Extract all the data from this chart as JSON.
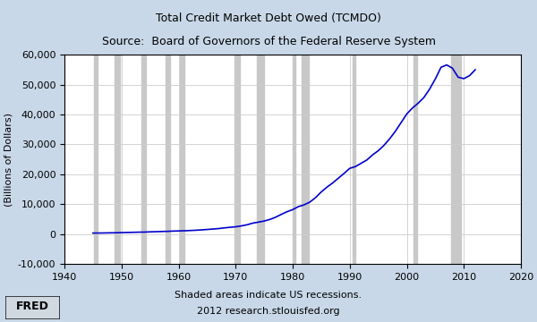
{
  "title_line1": "Total Credit Market Debt Owed (TCMDO)",
  "title_line2": "Source:  Board of Governors of the Federal Reserve System",
  "ylabel": "(Billions of Dollars)",
  "footer_line1": "Shaded areas indicate US recessions.",
  "footer_line2": "2012 research.stlouisfed.org",
  "xlim": [
    1940,
    2020
  ],
  "ylim": [
    -10000,
    60000
  ],
  "xticks": [
    1940,
    1950,
    1960,
    1970,
    1980,
    1990,
    2000,
    2010,
    2020
  ],
  "yticks": [
    -10000,
    0,
    10000,
    20000,
    30000,
    40000,
    50000,
    60000
  ],
  "background_color": "#c8d8e8",
  "plot_bg_color": "#ffffff",
  "line_color": "#0000cc",
  "recession_color": "#c8c8c8",
  "recessions": [
    [
      1945.25,
      1945.75
    ],
    [
      1948.75,
      1949.75
    ],
    [
      1953.5,
      1954.25
    ],
    [
      1957.75,
      1958.5
    ],
    [
      1960.25,
      1961.0
    ],
    [
      1969.75,
      1970.75
    ],
    [
      1973.75,
      1975.0
    ],
    [
      1980.0,
      1980.5
    ],
    [
      1981.5,
      1982.75
    ],
    [
      1990.5,
      1991.0
    ],
    [
      2001.25,
      2001.75
    ],
    [
      2007.75,
      2009.5
    ]
  ],
  "data_years": [
    1945,
    1946,
    1947,
    1948,
    1949,
    1950,
    1951,
    1952,
    1953,
    1954,
    1955,
    1956,
    1957,
    1958,
    1959,
    1960,
    1961,
    1962,
    1963,
    1964,
    1965,
    1966,
    1967,
    1968,
    1969,
    1970,
    1971,
    1972,
    1973,
    1974,
    1975,
    1976,
    1977,
    1978,
    1979,
    1980,
    1981,
    1982,
    1983,
    1984,
    1985,
    1986,
    1987,
    1988,
    1989,
    1990,
    1991,
    1992,
    1993,
    1994,
    1995,
    1996,
    1997,
    1998,
    1999,
    2000,
    2001,
    2002,
    2003,
    2004,
    2005,
    2006,
    2007,
    2008,
    2009,
    2010,
    2011,
    2012
  ],
  "data_values": [
    355,
    370,
    400,
    440,
    460,
    510,
    560,
    610,
    660,
    690,
    760,
    820,
    880,
    940,
    1020,
    1080,
    1130,
    1210,
    1300,
    1420,
    1560,
    1700,
    1860,
    2090,
    2280,
    2460,
    2750,
    3130,
    3680,
    4020,
    4380,
    4920,
    5650,
    6600,
    7500,
    8200,
    9200,
    9800,
    10700,
    12200,
    14100,
    15700,
    17100,
    18700,
    20300,
    22000,
    22600,
    23700,
    24800,
    26500,
    27900,
    29700,
    31900,
    34400,
    37300,
    40200,
    42200,
    43800,
    45700,
    48500,
    51900,
    55800,
    56600,
    55500,
    52500,
    52000,
    53000,
    55000
  ]
}
